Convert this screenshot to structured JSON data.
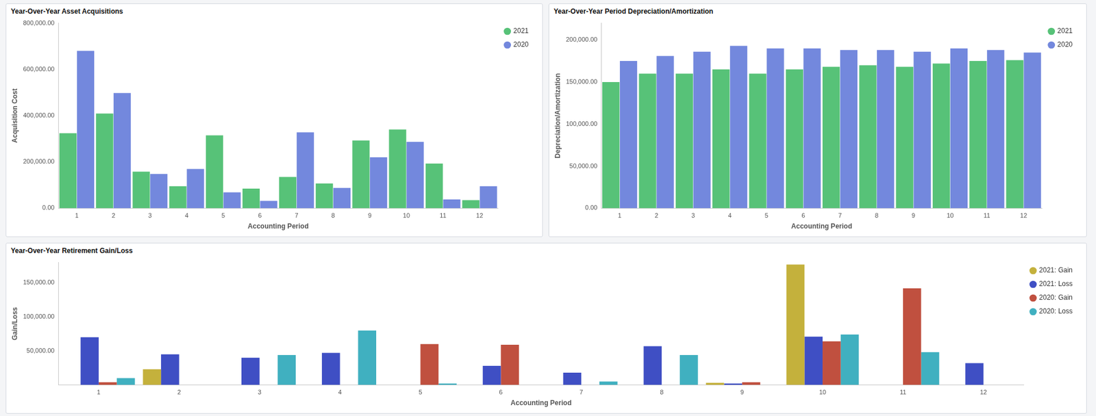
{
  "chart_data": [
    {
      "type": "bar",
      "title": "Year-Over-Year Asset Acquisitions",
      "x_label": "Accounting Period",
      "y_label": "Acquisition Cost",
      "categories": [
        "1",
        "2",
        "3",
        "4",
        "5",
        "6",
        "7",
        "8",
        "9",
        "10",
        "11",
        "12"
      ],
      "series": [
        {
          "name": "2021",
          "color": "#57c278",
          "values": [
            324000,
            409000,
            158000,
            95000,
            315000,
            85000,
            135000,
            107000,
            293000,
            340000,
            193000,
            35000
          ]
        },
        {
          "name": "2020",
          "color": "#7388dd",
          "values": [
            680000,
            498000,
            148000,
            170000,
            69000,
            32000,
            328000,
            88000,
            220000,
            287000,
            38000,
            95000
          ]
        }
      ],
      "ylim": [
        0,
        800000
      ],
      "yticks": [
        {
          "value": 0,
          "label": "0.00"
        },
        {
          "value": 200000,
          "label": "200,000.00"
        },
        {
          "value": 400000,
          "label": "400,000.00"
        },
        {
          "value": 600000,
          "label": "600,000.00"
        },
        {
          "value": 800000,
          "label": "800,000.00"
        }
      ],
      "grid": false,
      "legend": "top right"
    },
    {
      "type": "bar",
      "title": "Year-Over-Year Period Depreciation/Amortization",
      "x_label": "Accounting Period",
      "y_label": "Depreciation/Amortization",
      "categories": [
        "1",
        "2",
        "3",
        "4",
        "5",
        "6",
        "7",
        "8",
        "9",
        "10",
        "11",
        "12"
      ],
      "series": [
        {
          "name": "2021",
          "color": "#57c278",
          "values": [
            150000,
            160000,
            160000,
            165000,
            160000,
            165000,
            168000,
            170000,
            168000,
            172000,
            175000,
            176000
          ]
        },
        {
          "name": "2020",
          "color": "#7388dd",
          "values": [
            175000,
            181000,
            186000,
            193000,
            190000,
            190000,
            188000,
            188000,
            186000,
            190000,
            188000,
            185000
          ]
        }
      ],
      "ylim": [
        0,
        220000
      ],
      "yticks": [
        {
          "value": 0,
          "label": "0.00"
        },
        {
          "value": 50000,
          "label": "50,000.00"
        },
        {
          "value": 100000,
          "label": "100,000.00"
        },
        {
          "value": 150000,
          "label": "150,000.00"
        },
        {
          "value": 200000,
          "label": "200,000.00"
        }
      ],
      "grid": false,
      "legend": "top right"
    },
    {
      "type": "bar",
      "title": "Year-Over-Year Retirement Gain/Loss",
      "x_label": "Accounting Period",
      "y_label": "Gain/Loss",
      "categories": [
        "1",
        "2",
        "3",
        "4",
        "5",
        "6",
        "7",
        "8",
        "9",
        "10",
        "11",
        "12"
      ],
      "series": [
        {
          "name": "2021: Gain",
          "color": "#c4b13c",
          "values": [
            null,
            23000,
            null,
            null,
            null,
            null,
            null,
            null,
            3000,
            177000,
            null,
            null
          ]
        },
        {
          "name": "2021: Loss",
          "color": "#3f4fc4",
          "values": [
            70000,
            45000,
            40000,
            47000,
            null,
            28000,
            18000,
            57000,
            2000,
            71000,
            null,
            32000
          ]
        },
        {
          "name": "2020: Gain",
          "color": "#c0503f",
          "values": [
            4000,
            null,
            null,
            null,
            60000,
            59000,
            null,
            null,
            4000,
            64000,
            142000,
            null
          ]
        },
        {
          "name": "2020: Loss",
          "color": "#40b0c0",
          "values": [
            10000,
            null,
            44000,
            80000,
            2000,
            null,
            5000,
            44000,
            null,
            74000,
            48000,
            null
          ]
        }
      ],
      "ylim": [
        0,
        180000
      ],
      "yticks": [
        {
          "value": 50000,
          "label": "50,000.00"
        },
        {
          "value": 100000,
          "label": "100,000.00"
        },
        {
          "value": 150000,
          "label": "150,000.00"
        }
      ],
      "grid": false,
      "legend": "top right"
    }
  ]
}
